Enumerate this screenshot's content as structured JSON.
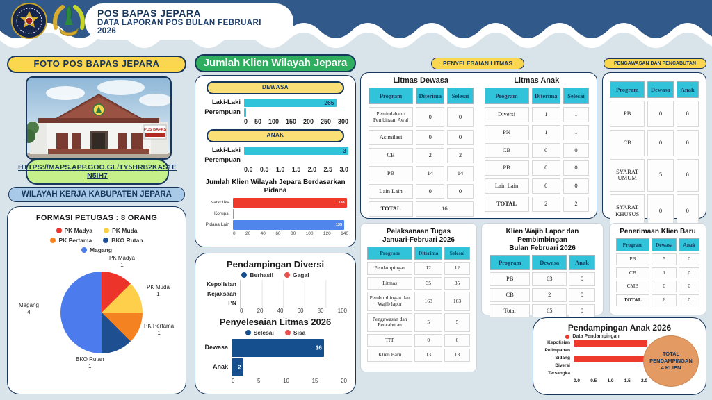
{
  "colors": {
    "navy_band": "#31598a",
    "ink": "#17365c",
    "page_bg": "#d9e3ea",
    "yellow": "#fbd64f",
    "green_header": "#2fae5f",
    "light_green": "#c6f089",
    "light_blue": "#a9c9e8",
    "cyan": "#30c3d9",
    "red": "#ee3a2c",
    "orange": "#f5831f",
    "blue": "#4e86ec",
    "dark_bar_blue": "#164f8e",
    "badge_orange": "#e39a63"
  },
  "header": {
    "title": "POS BAPAS JEPARA",
    "subtitle": "DATA LAPORAN POS BULAN FEBRUARI 2026"
  },
  "left": {
    "foto_label": "FOTO POS BAPAS JEPARA",
    "photo_sign": "POS BAPAS",
    "map_link": {
      "line1": "HTTPS://MAPS.APP.GOO.GL/TY5HRB2KAS1E",
      "line2": "N5IH7"
    },
    "wilayah_label": "WILAYAH KERJA KABUPATEN JEPARA",
    "formasi": {
      "title": "FORMASI PETUGAS : 8 ORANG",
      "slices": [
        {
          "label": "PK Madya",
          "value": 1,
          "color": "#ec342b"
        },
        {
          "label": "PK Muda",
          "value": 1,
          "color": "#fdcf4b"
        },
        {
          "label": "PK Pertama",
          "value": 1,
          "color": "#f58220"
        },
        {
          "label": "BKO Rutan",
          "value": 1,
          "color": "#1e4f91"
        },
        {
          "label": "Magang",
          "value": 4,
          "color": "#4b7bec"
        }
      ]
    }
  },
  "klien": {
    "header": "Jumlah Klien Wilayah Jepara",
    "dewasa": {
      "label": "DEWASA",
      "categories": [
        "Laki-Laki",
        "Perempuan"
      ],
      "values": [
        265,
        5
      ],
      "display": [
        "265",
        ""
      ],
      "max": 300,
      "ticks": [
        "0",
        "50",
        "100",
        "150",
        "200",
        "250",
        "300"
      ]
    },
    "anak": {
      "label": "ANAK",
      "categories": [
        "Laki-Laki",
        "Perempuan"
      ],
      "values": [
        3,
        0
      ],
      "display": [
        "3",
        ""
      ],
      "max": 3,
      "ticks": [
        "0.0",
        "0.5",
        "1.0",
        "1.5",
        "2.0",
        "2.5",
        "3.0"
      ]
    },
    "pidana": {
      "title": "Jumlah Klien Wilayah Jepara Berdasarkan Pidana",
      "title_line1": "Jumlah Klien Wilayah Jepara Berdasarkan",
      "title_line2": "Pidana",
      "categories": [
        "Narkotika",
        "Korupsi",
        "Pidana Lain"
      ],
      "values": [
        138,
        1,
        135
      ],
      "display": [
        "138",
        "",
        "135"
      ],
      "colors": [
        "#ee3a2c",
        "#f5831f",
        "#4e86ec"
      ],
      "max": 140,
      "ticks": [
        "0",
        "20",
        "40",
        "60",
        "80",
        "100",
        "120",
        "140"
      ]
    }
  },
  "diversi": {
    "title": "Pendampingan Diversi",
    "legend": [
      {
        "label": "Berhasil",
        "color": "#164f8e"
      },
      {
        "label": "Gagal",
        "color": "#e8514d"
      }
    ],
    "categories": [
      "Kepolisian",
      "Kejaksaan",
      "PN"
    ],
    "values": [
      0,
      0,
      0
    ],
    "ticks": [
      "0",
      "20",
      "40",
      "60",
      "80",
      "100"
    ]
  },
  "litmas2026": {
    "title": "Penyelesaian Litmas 2026",
    "legend": [
      {
        "label": "Selesai",
        "color": "#164f8e"
      },
      {
        "label": "Sisa",
        "color": "#e8514d"
      }
    ],
    "categories": [
      "Dewasa",
      "Anak"
    ],
    "values": [
      16,
      2
    ],
    "display": [
      "16",
      "2"
    ],
    "max": 20,
    "ticks": [
      "0",
      "5",
      "10",
      "15",
      "20"
    ]
  },
  "tables": {
    "penyelesaian_pill": "PENYELESAIAN LITMAS",
    "pengawasan_pill": "PENGAWASAN DAN PENCABUTAN",
    "litmas_dewasa": {
      "title": "Litmas Dewasa",
      "headers": [
        "Program",
        "Diterima",
        "Selesai"
      ],
      "rows": [
        [
          "Pemindahan / Pembinaan Awal",
          "0",
          "0"
        ],
        [
          "Asimilasi",
          "0",
          "0"
        ],
        [
          "CB",
          "2",
          "2"
        ],
        [
          "PB",
          "14",
          "14"
        ],
        [
          "Lain Lain",
          "0",
          "0"
        ]
      ],
      "total_label": "TOTAL",
      "total_value": "16"
    },
    "litmas_anak": {
      "title": "Litmas Anak",
      "headers": [
        "Program",
        "Diterima",
        "Selesai"
      ],
      "rows": [
        [
          "Diversi",
          "1",
          "1"
        ],
        [
          "PN",
          "1",
          "1"
        ],
        [
          "CB",
          "0",
          "0"
        ],
        [
          "PB",
          "0",
          "0"
        ],
        [
          "Lain Lain",
          "0",
          "0"
        ],
        [
          "TOTAL",
          "2",
          "2"
        ]
      ]
    },
    "pengawasan": {
      "headers": [
        "Program",
        "Dewasa",
        "Anak"
      ],
      "rows": [
        [
          "PB",
          "0",
          "0"
        ],
        [
          "CB",
          "0",
          "0"
        ],
        [
          "SYARAT UMUM",
          "5",
          "0"
        ],
        [
          "SYARAT KHUSUS",
          "0",
          "0"
        ]
      ]
    },
    "pelaksanaan": {
      "title_line1": "Pelaksanaan Tugas",
      "title_line2": "Januari-Februari 2026",
      "headers": [
        "Program",
        "Diterima",
        "Selesai"
      ],
      "rows": [
        [
          "Pendampingan",
          "12",
          "12"
        ],
        [
          "Litmas",
          "35",
          "35"
        ],
        [
          "Pembimbingan dan Wajib lapor",
          "163",
          "163"
        ],
        [
          "Pengawasan dan Pencabutan",
          "5",
          "5"
        ],
        [
          "TPP",
          "0",
          "0"
        ],
        [
          "Klien Baru",
          "13",
          "13"
        ]
      ]
    },
    "wajib_lapor": {
      "title_line1": "Klien Wajib Lapor dan Pembimbingan",
      "title_line2": "Bulan Februari 2026",
      "headers": [
        "Program",
        "Dewasa",
        "Anak"
      ],
      "rows": [
        [
          "PB",
          "63",
          "0"
        ],
        [
          "CB",
          "2",
          "0"
        ],
        [
          "Total",
          "65",
          "0"
        ]
      ]
    },
    "penerimaan": {
      "title": "Penerimaan Klien Baru",
      "headers": [
        "Program",
        "Dewasa",
        "Anak"
      ],
      "rows": [
        [
          "PB",
          "5",
          "0"
        ],
        [
          "CB",
          "1",
          "0"
        ],
        [
          "CMB",
          "0",
          "0"
        ],
        [
          "TOTAL",
          "6",
          "0"
        ]
      ]
    }
  },
  "pendampingan_anak": {
    "title": "Pendampingan Anak 2026",
    "legend": [
      {
        "label": "Data Pendampingan",
        "color": "#ee3a2c"
      }
    ],
    "categories": [
      "Kepolisian",
      "Pelimpahan",
      "Sidang",
      "Diversi",
      "Tersangka"
    ],
    "values": [
      2,
      0,
      2,
      0,
      0
    ],
    "max": 2,
    "ticks": [
      "0.0",
      "0.5",
      "1.0",
      "1.5",
      "2.0"
    ],
    "total_badge": {
      "line1": "TOTAL",
      "line2": "PENDAMPINGAN",
      "line3": "4 KLIEN"
    }
  },
  "chart_data": [
    {
      "type": "pie",
      "title": "FORMASI PETUGAS : 8 ORANG",
      "categories": [
        "PK Madya",
        "PK Muda",
        "PK Pertama",
        "BKO Rutan",
        "Magang"
      ],
      "values": [
        1,
        1,
        1,
        1,
        4
      ],
      "legend_position": "top"
    },
    {
      "type": "bar",
      "title": "DEWASA",
      "categories": [
        "Laki-Laki",
        "Perempuan"
      ],
      "values": [
        265,
        5
      ],
      "xlim": [
        0,
        300
      ],
      "orientation": "horizontal"
    },
    {
      "type": "bar",
      "title": "ANAK",
      "categories": [
        "Laki-Laki",
        "Perempuan"
      ],
      "values": [
        3,
        0
      ],
      "xlim": [
        0,
        3
      ],
      "orientation": "horizontal"
    },
    {
      "type": "bar",
      "title": "Jumlah Klien Wilayah Jepara Berdasarkan Pidana",
      "categories": [
        "Narkotika",
        "Korupsi",
        "Pidana Lain"
      ],
      "values": [
        138,
        1,
        135
      ],
      "xlim": [
        0,
        140
      ],
      "orientation": "horizontal"
    },
    {
      "type": "bar",
      "title": "Pendampingan Diversi",
      "categories": [
        "Kepolisian",
        "Kejaksaan",
        "PN"
      ],
      "series": [
        {
          "name": "Berhasil",
          "values": [
            0,
            0,
            0
          ]
        },
        {
          "name": "Gagal",
          "values": [
            0,
            0,
            0
          ]
        }
      ],
      "xlim": [
        0,
        100
      ],
      "orientation": "horizontal"
    },
    {
      "type": "bar",
      "title": "Penyelesaian Litmas 2026",
      "categories": [
        "Dewasa",
        "Anak"
      ],
      "series": [
        {
          "name": "Selesai",
          "values": [
            16,
            2
          ]
        },
        {
          "name": "Sisa",
          "values": [
            0,
            0
          ]
        }
      ],
      "xlim": [
        0,
        20
      ],
      "orientation": "horizontal"
    },
    {
      "type": "bar",
      "title": "Pendampingan Anak 2026",
      "categories": [
        "Kepolisian",
        "Pelimpahan",
        "Sidang",
        "Diversi",
        "Tersangka"
      ],
      "values": [
        2,
        0,
        2,
        0,
        0
      ],
      "xlim": [
        0,
        2
      ],
      "orientation": "horizontal",
      "annotation": "TOTAL PENDAMPINGAN 4 KLIEN"
    }
  ]
}
